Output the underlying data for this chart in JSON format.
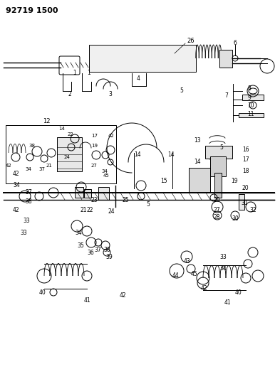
{
  "title": "92719 1500",
  "bg_color": "#ffffff",
  "line_color": "#000000",
  "fig_width": 3.93,
  "fig_height": 5.33,
  "dpi": 100
}
